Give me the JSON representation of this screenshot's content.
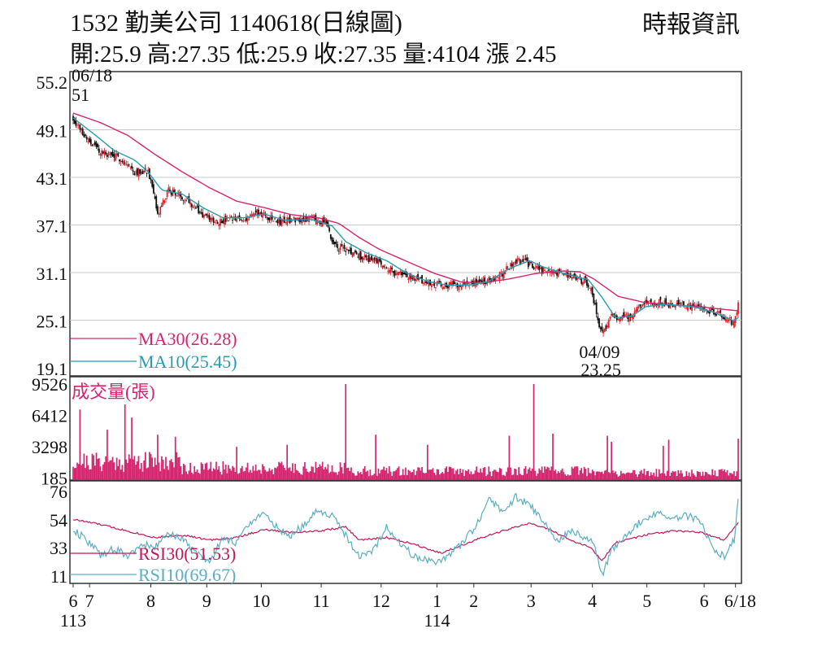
{
  "header": {
    "title": "1532  勤美公司 1140618(日線圖)",
    "source": "時報資訊",
    "quote": "開:25.9 高:27.35 低:25.9 收:27.35 量:4104 漲 2.45"
  },
  "colors": {
    "ma30": "#d6246e",
    "ma10": "#2a9bb5",
    "up": "#e0202a",
    "down": "#111111",
    "volume": "#d6246e",
    "rsi30": "#c2185b",
    "rsi10": "#5aaec4",
    "grid": "#c8c8c8",
    "frame": "#333333"
  },
  "chart_data": [
    {
      "type": "line",
      "name": "price",
      "ylim": [
        19.1,
        55.2
      ],
      "y_ticks": [
        "55.2",
        "49.1",
        "43.1",
        "37.1",
        "31.1",
        "25.1",
        "19.1"
      ],
      "y_tick_values": [
        55.2,
        49.1,
        43.1,
        37.1,
        31.1,
        25.1,
        19.1
      ],
      "x_ticks": [
        "6",
        "7",
        "8",
        "9",
        "10",
        "11",
        "12",
        "1",
        "2",
        "3",
        "4",
        "5",
        "6",
        "6/18"
      ],
      "x_tick_positions": [
        0,
        12,
        57,
        98,
        138,
        182,
        226,
        267,
        294,
        336,
        381,
        421,
        463,
        486
      ],
      "x_year_labels": [
        {
          "label": "113",
          "at": 0
        },
        {
          "label": "114",
          "at": 267
        }
      ],
      "n_days": 489,
      "annotations": {
        "high": {
          "date": "06/18",
          "value": "51",
          "index": 0,
          "price": 51
        },
        "low": {
          "date": "04/09",
          "value": "23.25",
          "index": 388,
          "price": 23.25
        }
      },
      "close_anchors": [
        [
          0,
          50.5
        ],
        [
          10,
          48.0
        ],
        [
          20,
          46.3
        ],
        [
          35,
          45.5
        ],
        [
          45,
          43.8
        ],
        [
          55,
          44.0
        ],
        [
          60,
          40.0
        ],
        [
          62,
          38.3
        ],
        [
          70,
          41.5
        ],
        [
          85,
          40.2
        ],
        [
          95,
          38.3
        ],
        [
          105,
          37.6
        ],
        [
          125,
          37.8
        ],
        [
          135,
          38.7
        ],
        [
          150,
          37.5
        ],
        [
          165,
          37.9
        ],
        [
          175,
          37.9
        ],
        [
          185,
          37.5
        ],
        [
          190,
          35.0
        ],
        [
          195,
          34.2
        ],
        [
          210,
          33.2
        ],
        [
          225,
          32.5
        ],
        [
          235,
          31.2
        ],
        [
          250,
          30.4
        ],
        [
          260,
          29.8
        ],
        [
          275,
          29.5
        ],
        [
          285,
          29.7
        ],
        [
          300,
          29.8
        ],
        [
          315,
          31.0
        ],
        [
          325,
          32.6
        ],
        [
          332,
          32.4
        ],
        [
          345,
          31.3
        ],
        [
          360,
          31.0
        ],
        [
          375,
          30.0
        ],
        [
          380,
          29.2
        ],
        [
          386,
          24.5
        ],
        [
          388,
          23.6
        ],
        [
          395,
          25.5
        ],
        [
          402,
          25.4
        ],
        [
          410,
          25.8
        ],
        [
          421,
          27.5
        ],
        [
          435,
          27.2
        ],
        [
          450,
          27.0
        ],
        [
          465,
          26.5
        ],
        [
          475,
          25.7
        ],
        [
          485,
          24.8
        ],
        [
          488,
          27.35
        ]
      ],
      "series": [
        {
          "name": "MA30",
          "label": "MA30(26.28)",
          "value": 26.28,
          "anchors": [
            [
              0,
              51.2
            ],
            [
              20,
              50.0
            ],
            [
              40,
              48.4
            ],
            [
              60,
              46.0
            ],
            [
              80,
              43.8
            ],
            [
              100,
              41.8
            ],
            [
              120,
              40.1
            ],
            [
              140,
              39.3
            ],
            [
              160,
              38.4
            ],
            [
              180,
              38.0
            ],
            [
              195,
              37.3
            ],
            [
              210,
              35.5
            ],
            [
              225,
              34.0
            ],
            [
              245,
              32.5
            ],
            [
              265,
              31.0
            ],
            [
              285,
              29.9
            ],
            [
              300,
              29.8
            ],
            [
              320,
              30.3
            ],
            [
              340,
              31.0
            ],
            [
              360,
              31.3
            ],
            [
              372,
              31.2
            ],
            [
              382,
              30.3
            ],
            [
              400,
              28.1
            ],
            [
              420,
              27.3
            ],
            [
              440,
              27.0
            ],
            [
              460,
              26.8
            ],
            [
              475,
              26.5
            ],
            [
              488,
              26.28
            ]
          ]
        },
        {
          "name": "MA10",
          "label": "MA10(25.45)",
          "value": 25.45,
          "anchors": [
            [
              0,
              50.6
            ],
            [
              15,
              48.6
            ],
            [
              30,
              46.5
            ],
            [
              45,
              45.3
            ],
            [
              55,
              43.8
            ],
            [
              65,
              41.5
            ],
            [
              80,
              41.0
            ],
            [
              95,
              39.3
            ],
            [
              110,
              38.0
            ],
            [
              125,
              38.0
            ],
            [
              140,
              38.5
            ],
            [
              155,
              37.7
            ],
            [
              175,
              37.8
            ],
            [
              190,
              37.0
            ],
            [
              200,
              35.0
            ],
            [
              215,
              33.6
            ],
            [
              230,
              32.6
            ],
            [
              245,
              31.0
            ],
            [
              260,
              30.0
            ],
            [
              275,
              29.5
            ],
            [
              290,
              29.5
            ],
            [
              305,
              30.0
            ],
            [
              320,
              31.6
            ],
            [
              335,
              32.6
            ],
            [
              345,
              31.8
            ],
            [
              360,
              31.0
            ],
            [
              378,
              30.2
            ],
            [
              388,
              28.0
            ],
            [
              398,
              25.4
            ],
            [
              410,
              25.6
            ],
            [
              420,
              26.8
            ],
            [
              435,
              27.1
            ],
            [
              455,
              26.8
            ],
            [
              470,
              26.1
            ],
            [
              485,
              25.0
            ],
            [
              488,
              25.45
            ]
          ]
        }
      ]
    },
    {
      "type": "bar",
      "name": "volume",
      "title": "成交量(張)",
      "ylim": [
        0,
        9526
      ],
      "y_ticks": [
        "9526",
        "6412",
        "3298",
        "185"
      ],
      "y_tick_values": [
        9526,
        6412,
        3298,
        185
      ],
      "last_value": 4104,
      "spikes": [
        [
          5,
          7000
        ],
        [
          25,
          5000
        ],
        [
          38,
          7500
        ],
        [
          43,
          6200
        ],
        [
          62,
          4500
        ],
        [
          75,
          4300
        ],
        [
          120,
          3300
        ],
        [
          157,
          3500
        ],
        [
          200,
          9526
        ],
        [
          222,
          4500
        ],
        [
          260,
          3500
        ],
        [
          320,
          4400
        ],
        [
          338,
          9526
        ],
        [
          352,
          4600
        ],
        [
          392,
          4400
        ],
        [
          395,
          3800
        ],
        [
          433,
          3400
        ],
        [
          437,
          4000
        ],
        [
          488,
          4104
        ]
      ]
    },
    {
      "type": "line",
      "name": "rsi",
      "ylim": [
        11,
        76
      ],
      "y_ticks": [
        "76",
        "54",
        "33",
        "11"
      ],
      "y_tick_values": [
        76,
        54,
        33,
        11
      ],
      "series": [
        {
          "name": "RSI30",
          "label": "RSI30(51.53)",
          "value": 51.53,
          "anchors": [
            [
              0,
              54
            ],
            [
              20,
              50
            ],
            [
              40,
              45
            ],
            [
              60,
              40
            ],
            [
              80,
              42
            ],
            [
              100,
              38
            ],
            [
              120,
              40
            ],
            [
              140,
              46
            ],
            [
              160,
              44
            ],
            [
              180,
              45
            ],
            [
              200,
              48
            ],
            [
              210,
              38
            ],
            [
              230,
              40
            ],
            [
              250,
              35
            ],
            [
              270,
              28
            ],
            [
              280,
              32
            ],
            [
              295,
              38
            ],
            [
              315,
              45
            ],
            [
              335,
              51
            ],
            [
              350,
              46
            ],
            [
              365,
              38
            ],
            [
              380,
              32
            ],
            [
              388,
              22
            ],
            [
              398,
              36
            ],
            [
              420,
              42
            ],
            [
              440,
              45
            ],
            [
              460,
              44
            ],
            [
              478,
              38
            ],
            [
              488,
              51.53
            ]
          ]
        },
        {
          "name": "RSI10",
          "label": "RSI10(69.67)",
          "value": 69.67,
          "anchors": [
            [
              0,
              46
            ],
            [
              10,
              38
            ],
            [
              20,
              27
            ],
            [
              30,
              31
            ],
            [
              40,
              26
            ],
            [
              50,
              34
            ],
            [
              60,
              33
            ],
            [
              70,
              42
            ],
            [
              80,
              40
            ],
            [
              90,
              28
            ],
            [
              100,
              22
            ],
            [
              110,
              39
            ],
            [
              120,
              36
            ],
            [
              130,
              52
            ],
            [
              140,
              58
            ],
            [
              150,
              47
            ],
            [
              160,
              42
            ],
            [
              170,
              50
            ],
            [
              180,
              62
            ],
            [
              190,
              56
            ],
            [
              200,
              42
            ],
            [
              210,
              25
            ],
            [
              220,
              30
            ],
            [
              230,
              48
            ],
            [
              240,
              35
            ],
            [
              250,
              26
            ],
            [
              265,
              20
            ],
            [
              275,
              26
            ],
            [
              285,
              35
            ],
            [
              295,
              48
            ],
            [
              305,
              69
            ],
            [
              315,
              60
            ],
            [
              325,
              71
            ],
            [
              335,
              65
            ],
            [
              345,
              52
            ],
            [
              355,
              38
            ],
            [
              365,
              45
            ],
            [
              375,
              40
            ],
            [
              382,
              35
            ],
            [
              388,
              11
            ],
            [
              395,
              30
            ],
            [
              405,
              42
            ],
            [
              420,
              55
            ],
            [
              430,
              58
            ],
            [
              440,
              55
            ],
            [
              450,
              57
            ],
            [
              460,
              52
            ],
            [
              470,
              32
            ],
            [
              478,
              25
            ],
            [
              485,
              38
            ],
            [
              488,
              69.67
            ]
          ]
        }
      ]
    }
  ]
}
